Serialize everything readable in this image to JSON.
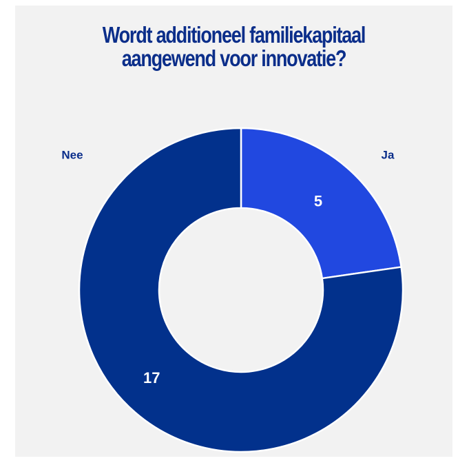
{
  "chart_data": {
    "type": "pie",
    "title_lines": [
      "Wordt additioneel familiekapitaal",
      "aangewend voor innovatie?"
    ],
    "categories": [
      "Ja",
      "Nee"
    ],
    "values": [
      5,
      17
    ],
    "colors": [
      "#2148e0",
      "#02318c"
    ],
    "donut": true,
    "legend": "none"
  },
  "colors": {
    "title": "#0b2e8a",
    "background": "#f2f2f2",
    "separator": "#ffffff"
  }
}
